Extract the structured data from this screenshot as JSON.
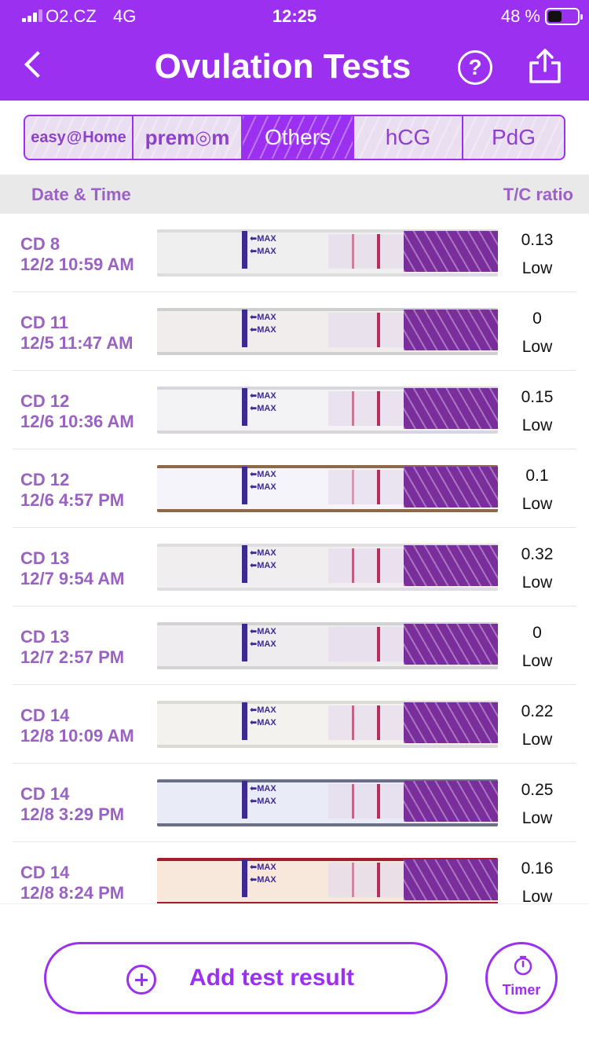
{
  "status_bar": {
    "carrier": "O2.CZ",
    "network": "4G",
    "time": "12:25",
    "battery": "48 %",
    "battery_level": 0.48
  },
  "header": {
    "title": "Ovulation Tests",
    "back_icon": "chevron-left-icon",
    "help_label": "?",
    "share_icon": "share-icon"
  },
  "brand_tabs": [
    {
      "label_a": "easy",
      "label_b": "Home",
      "active": false
    },
    {
      "label_a": "prem",
      "label_b": "m",
      "active": false
    },
    {
      "label": "Others",
      "active": true
    },
    {
      "label": "hCG",
      "active": false
    },
    {
      "label": "PdG",
      "active": false
    }
  ],
  "columns": {
    "date_time": "Date & Time",
    "tc_ratio": "T/C ratio"
  },
  "strip_text": {
    "max": "MAX"
  },
  "tests": [
    {
      "cd": "CD 8",
      "datetime": "12/2 10:59 AM",
      "ratio": "0.13",
      "level": "Low"
    },
    {
      "cd": "CD 11",
      "datetime": "12/5 11:47 AM",
      "ratio": "0",
      "level": "Low"
    },
    {
      "cd": "CD 12",
      "datetime": "12/6 10:36 AM",
      "ratio": "0.15",
      "level": "Low"
    },
    {
      "cd": "CD 12",
      "datetime": "12/6 4:57 PM",
      "ratio": "0.1",
      "level": "Low"
    },
    {
      "cd": "CD 13",
      "datetime": "12/7 9:54 AM",
      "ratio": "0.32",
      "level": "Low"
    },
    {
      "cd": "CD 13",
      "datetime": "12/7 2:57 PM",
      "ratio": "0",
      "level": "Low"
    },
    {
      "cd": "CD 14",
      "datetime": "12/8 10:09 AM",
      "ratio": "0.22",
      "level": "Low"
    },
    {
      "cd": "CD 14",
      "datetime": "12/8 3:29 PM",
      "ratio": "0.25",
      "level": "Low"
    },
    {
      "cd": "CD 14",
      "datetime": "12/8 8:24 PM",
      "ratio": "0.16",
      "level": "Low"
    }
  ],
  "footer": {
    "add_label": "Add test result",
    "timer_label": "Timer"
  },
  "colors": {
    "accent": "#9b30f0",
    "text_purple": "#9a62c2",
    "handle": "#7a2e9c"
  }
}
